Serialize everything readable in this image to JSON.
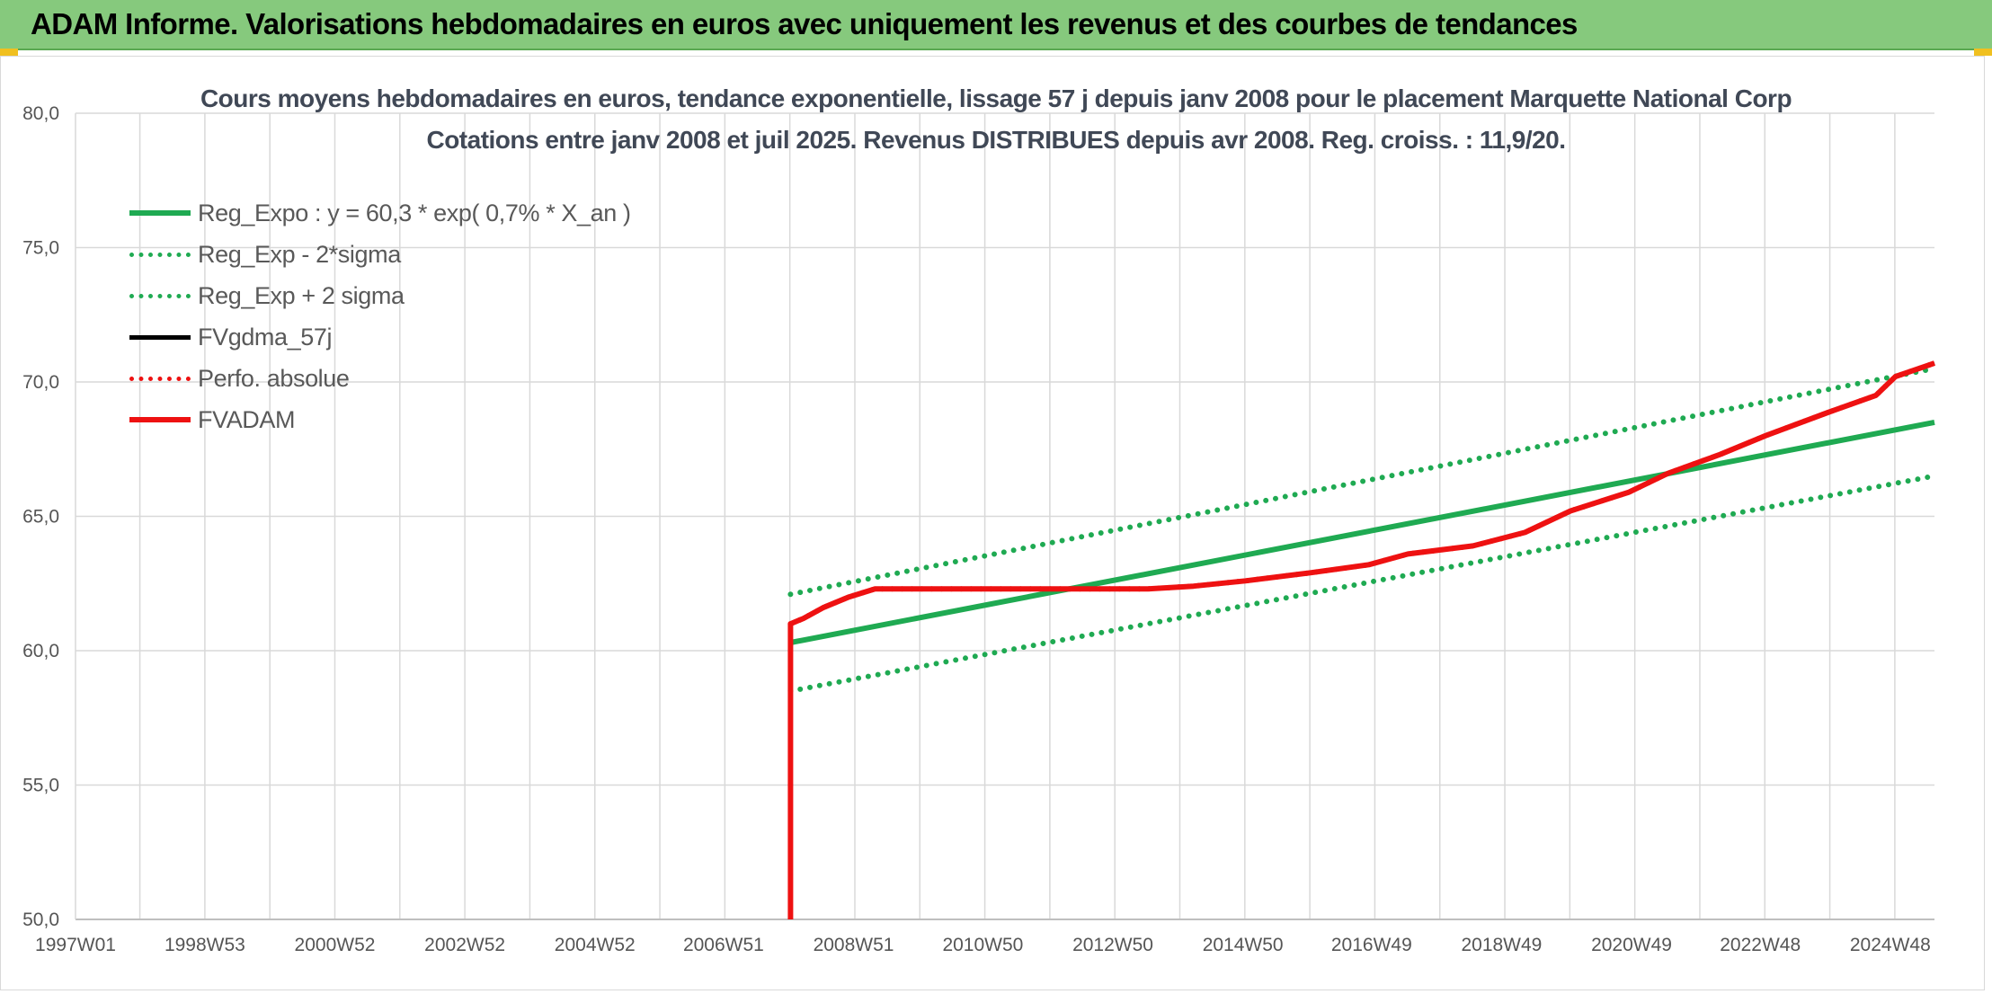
{
  "banner": {
    "title": "ADAM Informe. Valorisations hebdomadaires en euros avec uniquement les revenus et des courbes de tendances"
  },
  "colors": {
    "banner": "#86c97d",
    "trend_green": "#1faa52",
    "red": "#ee1111",
    "black": "#000000",
    "grid": "#d9d9d9"
  },
  "chart_data": {
    "type": "line",
    "title": "Cours moyens hebdomadaires en euros, tendance exponentielle, lissage 57 j depuis janv 2008 pour le placement Marquette National Corp",
    "subtitle": "Cotations entre janv 2008 et juil 2025. Revenus DISTRIBUES depuis avr 2008. Reg. croiss. : 11,9/20.",
    "xlabel": "",
    "ylabel": "",
    "ylim": [
      50,
      80
    ],
    "yticks": [
      "50,0",
      "55,0",
      "60,0",
      "65,0",
      "70,0",
      "75,0",
      "80,0"
    ],
    "xlim": [
      1997.0,
      2025.6
    ],
    "xticks": [
      {
        "x": 1997.0,
        "label": "1997W01"
      },
      {
        "x": 1998.99,
        "label": "1998W53"
      },
      {
        "x": 2000.99,
        "label": "2000W52"
      },
      {
        "x": 2002.99,
        "label": "2002W52"
      },
      {
        "x": 2004.99,
        "label": "2004W52"
      },
      {
        "x": 2006.97,
        "label": "2006W51"
      },
      {
        "x": 2008.97,
        "label": "2008W51"
      },
      {
        "x": 2010.96,
        "label": "2010W50"
      },
      {
        "x": 2012.96,
        "label": "2012W50"
      },
      {
        "x": 2014.96,
        "label": "2014W50"
      },
      {
        "x": 2016.94,
        "label": "2016W49"
      },
      {
        "x": 2018.94,
        "label": "2018W49"
      },
      {
        "x": 2020.94,
        "label": "2020W49"
      },
      {
        "x": 2022.92,
        "label": "2022W48"
      },
      {
        "x": 2024.92,
        "label": "2024W48"
      }
    ],
    "grid": true,
    "legend_position": "top-left",
    "series": [
      {
        "name": "Reg_Expo : y = 60,3 * exp( 0,7% *  X_an )",
        "style": "solid",
        "color": "#1faa52",
        "x": [
          2008.0,
          2025.6
        ],
        "y": [
          60.3,
          68.5
        ]
      },
      {
        "name": "Reg_Exp - 2*sigma",
        "style": "dotted",
        "color": "#1faa52",
        "x": [
          2008.0,
          2025.6
        ],
        "y": [
          58.5,
          66.5
        ]
      },
      {
        "name": "Reg_Exp + 2 sigma",
        "style": "dotted",
        "color": "#1faa52",
        "x": [
          2008.0,
          2025.6
        ],
        "y": [
          62.1,
          70.5
        ]
      },
      {
        "name": "FVgdma_57j",
        "style": "solid",
        "color": "#000000",
        "x": [
          2008.0,
          2008.2,
          2008.5,
          2008.9,
          2009.3,
          2010.0,
          2012.0,
          2013.5,
          2014.2,
          2015.0,
          2016.0,
          2016.9,
          2017.5,
          2018.5,
          2019.3,
          2020.0,
          2020.9,
          2021.5,
          2022.3,
          2023.0,
          2024.0,
          2024.7,
          2025.0,
          2025.6
        ],
        "y": [
          61.0,
          61.2,
          61.6,
          62.0,
          62.3,
          62.3,
          62.3,
          62.3,
          62.4,
          62.6,
          62.9,
          63.2,
          63.6,
          63.9,
          64.4,
          65.2,
          65.9,
          66.6,
          67.3,
          68.0,
          68.9,
          69.5,
          70.2,
          70.7
        ]
      },
      {
        "name": "Perfo. absolue",
        "style": "dotted",
        "color": "#ee1111",
        "x": [
          2008.0,
          2008.2,
          2008.5,
          2008.9,
          2009.3,
          2010.0,
          2012.0,
          2013.5,
          2014.2,
          2015.0,
          2016.0,
          2016.9,
          2017.5,
          2018.5,
          2019.3,
          2020.0,
          2020.9,
          2021.5,
          2022.3,
          2023.0,
          2024.0,
          2024.7,
          2025.0,
          2025.6
        ],
        "y": [
          61.0,
          61.2,
          61.6,
          62.0,
          62.3,
          62.3,
          62.3,
          62.3,
          62.4,
          62.6,
          62.9,
          63.2,
          63.6,
          63.9,
          64.4,
          65.2,
          65.9,
          66.6,
          67.3,
          68.0,
          68.9,
          69.5,
          70.2,
          70.7
        ]
      },
      {
        "name": "FVADAM",
        "style": "solid",
        "color": "#ee1111",
        "x": [
          2008.0,
          2008.0,
          2008.2,
          2008.5,
          2008.9,
          2009.3,
          2010.0,
          2012.0,
          2013.5,
          2014.2,
          2015.0,
          2016.0,
          2016.9,
          2017.5,
          2018.5,
          2019.3,
          2020.0,
          2020.9,
          2021.5,
          2022.3,
          2023.0,
          2024.0,
          2024.7,
          2025.0,
          2025.6
        ],
        "y": [
          50.0,
          61.0,
          61.2,
          61.6,
          62.0,
          62.3,
          62.3,
          62.3,
          62.3,
          62.4,
          62.6,
          62.9,
          63.2,
          63.6,
          63.9,
          64.4,
          65.2,
          65.9,
          66.6,
          67.3,
          68.0,
          68.9,
          69.5,
          70.2,
          70.7
        ]
      }
    ]
  }
}
